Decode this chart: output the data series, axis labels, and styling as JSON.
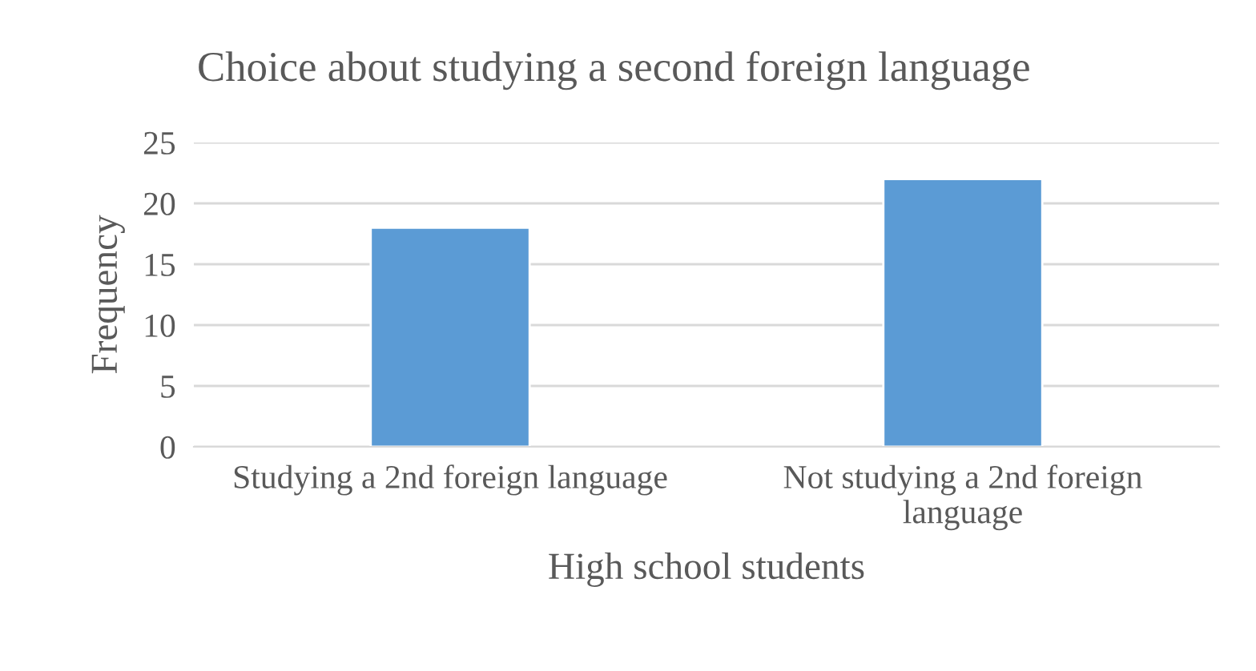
{
  "chart_data": {
    "type": "bar",
    "title": "Choice about studying a second foreign language",
    "xlabel": "High school students",
    "ylabel": "Frequency",
    "categories": [
      "Studying a 2nd foreign language",
      "Not studying a 2nd foreign\nlanguage"
    ],
    "values": [
      18,
      22
    ],
    "color": "#5b9bd5",
    "ylim": [
      0,
      25
    ],
    "yticks": [
      0,
      5,
      10,
      15,
      20,
      25
    ],
    "grid": "y",
    "legend": false
  }
}
